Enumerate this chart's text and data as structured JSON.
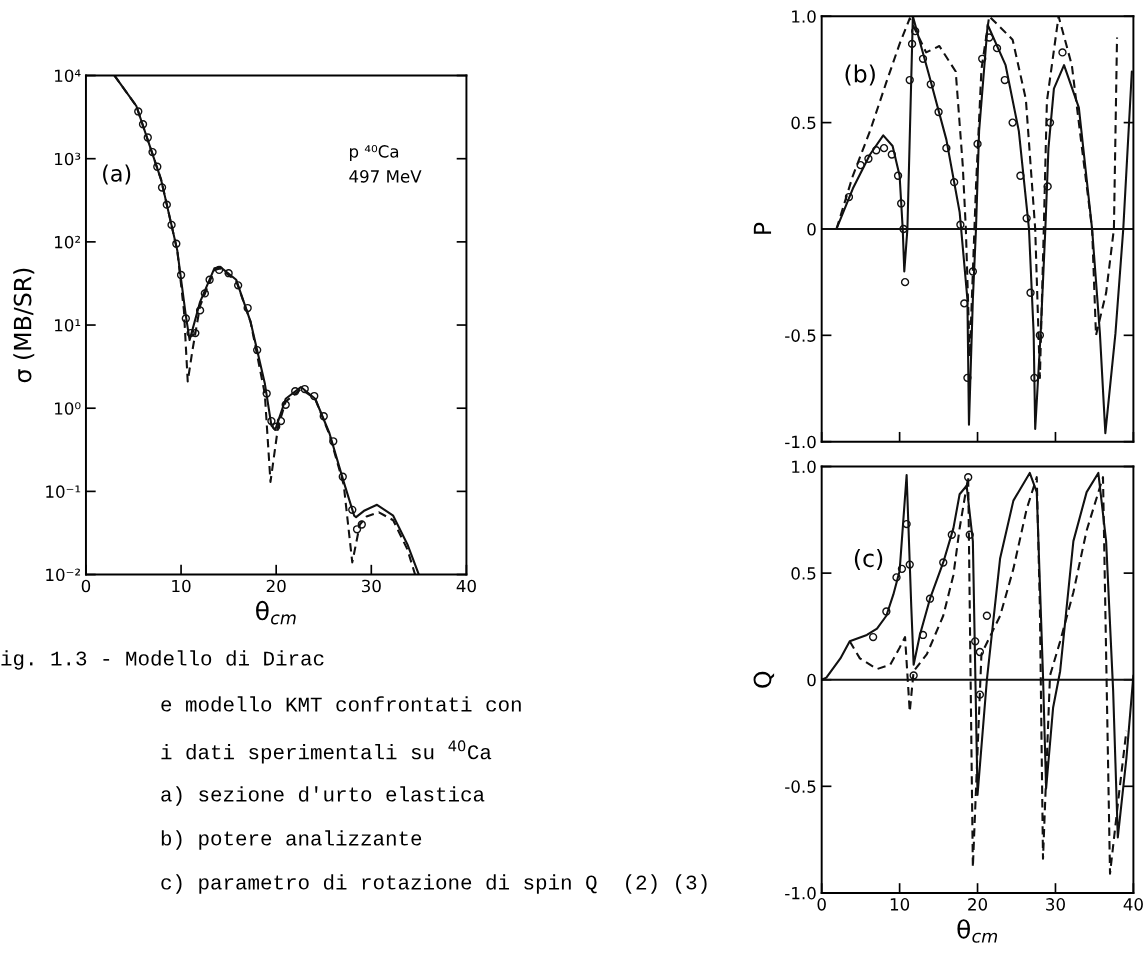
{
  "chart_data": [
    {
      "type": "line",
      "xlabel": "θ$_{cm}$",
      "ylabel": "σ (MB/SR)",
      "log": true,
      "xlim": [
        0,
        40
      ],
      "xticks": [
        0,
        10,
        20,
        30,
        40
      ],
      "ylim": [
        0.01,
        10000
      ],
      "yticks": [
        {
          "value": 0.01,
          "label": "10⁻²"
        },
        {
          "value": 0.1,
          "label": "10⁻¹"
        },
        {
          "value": 1,
          "label": "10⁰"
        },
        {
          "value": 10,
          "label": "10¹"
        },
        {
          "value": 100,
          "label": "10²"
        },
        {
          "value": 1000,
          "label": "10³"
        },
        {
          "value": 10000,
          "label": "10⁴"
        }
      ],
      "annotations": [
        "(a)",
        "p ⁴⁰Ca",
        "497 MeV",
        "ig. 1.3 - Modello di Dirac",
        "e modello KMT confrontati con",
        "i dati sperimentali su $^{40}$Ca",
        "a) sezione d'urto elastica",
        "b) potere analizzante",
        "c) parametro di rotazione di spin Q  (2) (3)"
      ],
      "series": [
        {
          "type": "line",
          "line_style": "solid",
          "color": "#111111",
          "x": [
            3,
            5.3,
            7.9,
            9.6,
            10.5,
            10.9,
            12,
            13.5,
            14.1,
            15.8,
            17.3,
            18.8,
            19.5,
            19.9,
            21,
            22.6,
            24.1,
            25.6,
            27.1,
            28.2,
            28.4,
            29.3,
            30.6,
            32.3,
            33.8,
            35
          ],
          "values": [
            10000,
            4300,
            560,
            79,
            13,
            6.6,
            19,
            48,
            50,
            35,
            11,
            2.0,
            0.62,
            0.55,
            1.3,
            1.8,
            1.3,
            0.5,
            0.13,
            0.051,
            0.049,
            0.059,
            0.069,
            0.051,
            0.023,
            0.01
          ]
        },
        {
          "type": "line",
          "line_style": "dashed",
          "color": "#111111",
          "x": [
            3,
            5.3,
            7.9,
            9.6,
            10.3,
            10.7,
            11.2,
            12,
            13.5,
            14.1,
            15.8,
            17.3,
            18.8,
            19.4,
            20.2,
            21,
            22.6,
            24.1,
            25.6,
            27.1,
            28,
            28.8,
            29.5,
            30.8,
            32.3,
            33.8,
            34.6
          ],
          "values": [
            10000,
            4300,
            560,
            79,
            15,
            2.1,
            5,
            17,
            46,
            48,
            34,
            11,
            1.5,
            0.13,
            0.6,
            1.2,
            1.7,
            1.3,
            0.48,
            0.12,
            0.014,
            0.04,
            0.05,
            0.056,
            0.045,
            0.02,
            0.01
          ]
        },
        {
          "type": "scatter",
          "marker": "circle",
          "color": "#111111",
          "x": [
            5.5,
            6,
            6.5,
            7,
            7.5,
            8,
            8.5,
            9,
            9.5,
            10,
            10.5,
            11,
            11.5,
            12,
            12.5,
            13,
            14,
            15,
            16,
            17,
            18,
            19,
            19.5,
            20,
            20.5,
            21,
            22,
            23,
            24,
            25,
            26,
            27,
            28,
            28.5,
            29
          ],
          "values": [
            3700,
            2600,
            1800,
            1200,
            800,
            450,
            280,
            160,
            95,
            40,
            12,
            8,
            8,
            15,
            24,
            35,
            46,
            42,
            30,
            16,
            5,
            1.5,
            0.7,
            0.6,
            0.7,
            1.1,
            1.6,
            1.7,
            1.4,
            0.8,
            0.4,
            0.15,
            0.06,
            0.035,
            0.04
          ]
        }
      ]
    },
    {
      "type": "line",
      "ylabel": "P",
      "tick_labels": "y",
      "xlim": [
        0,
        40
      ],
      "xticks": [
        0,
        10,
        20,
        30,
        40
      ],
      "ylim": [
        -1.0,
        1.0
      ],
      "yticks": [
        {
          "value": -1.0,
          "label": "-1.0"
        },
        {
          "value": -0.5,
          "label": "-0.5"
        },
        {
          "value": 0,
          "label": "0"
        },
        {
          "value": 0.5,
          "label": "0.5"
        },
        {
          "value": 1.0,
          "label": "1.0"
        }
      ],
      "ref_lines": [
        {
          "axis": "y",
          "value": 0,
          "color": "#111111"
        }
      ],
      "annotations": [
        "(b)"
      ],
      "series": [
        {
          "type": "line",
          "line_style": "solid",
          "color": "#111111",
          "x": [
            0,
            1.9,
            4.0,
            6.2,
            7.9,
            9.1,
            10,
            10.4,
            10.6,
            11.0,
            11.7,
            13.8,
            16,
            17.7,
            18.7,
            18.9,
            19.4,
            19.8,
            20.2,
            21.3,
            23.6,
            25.3,
            26.6,
            27.2,
            27.4,
            28.1,
            28.7,
            29.1,
            29.8,
            31.1,
            33,
            34.7,
            35.7,
            36.4,
            37.7,
            38.7,
            39.8
          ],
          "values": [
            0,
            0,
            0.19,
            0.35,
            0.44,
            0.39,
            0.25,
            0,
            -0.2,
            0,
            1.0,
            0.72,
            0.42,
            0.08,
            -0.33,
            -0.92,
            -0.33,
            0,
            0.46,
            0.96,
            0.77,
            0.46,
            0,
            -0.49,
            -0.94,
            -0.49,
            0,
            0.38,
            0.66,
            0.77,
            0.57,
            0,
            -0.49,
            -0.96,
            -0.49,
            0,
            0.74
          ]
        },
        {
          "type": "line",
          "line_style": "dashed",
          "color": "#111111",
          "x": [
            1.9,
            4.0,
            6.2,
            8.3,
            10,
            11.3,
            13.4,
            15.1,
            17.2,
            18.1,
            18.5,
            19.0,
            19.8,
            20.5,
            21.5,
            24.5,
            26.2,
            27.4,
            28.0,
            28.5,
            28.9,
            30.4,
            32.1,
            33.4,
            34.7,
            35.2,
            36.5,
            37.5,
            37.9
          ],
          "values": [
            0,
            0.25,
            0.46,
            0.69,
            0.87,
            0.99,
            0.83,
            0.86,
            0.74,
            0.3,
            0,
            -0.6,
            0.2,
            0.75,
            1.0,
            0.89,
            0.61,
            0,
            -0.7,
            0,
            0.6,
            1.0,
            0.77,
            0.38,
            0,
            -0.5,
            -0.3,
            0,
            0.9
          ]
        },
        {
          "type": "scatter",
          "marker": "circle",
          "color": "#111111",
          "x": [
            3.5,
            5,
            6,
            7,
            8,
            9,
            9.8,
            10.2,
            10.5,
            10.7,
            11.3,
            11.6,
            12,
            13,
            14,
            15,
            16,
            17,
            17.8,
            18.3,
            18.7,
            19.4,
            20,
            20.6,
            21.5,
            22.5,
            23.5,
            24.5,
            25.5,
            26.3,
            26.8,
            27.3,
            28,
            29,
            29.3,
            30.9
          ],
          "values": [
            0.15,
            0.3,
            0.33,
            0.37,
            0.38,
            0.35,
            0.25,
            0.12,
            0,
            -0.25,
            0.7,
            0.87,
            0.93,
            0.8,
            0.68,
            0.55,
            0.38,
            0.22,
            0.02,
            -0.35,
            -0.7,
            -0.2,
            0.4,
            0.8,
            0.9,
            0.85,
            0.7,
            0.5,
            0.25,
            0.05,
            -0.3,
            -0.7,
            -0.5,
            0.2,
            0.5,
            0.83
          ]
        }
      ]
    },
    {
      "type": "line",
      "ylabel": "Q",
      "xlabel": "θ$_{cm}$",
      "xlim": [
        0,
        40
      ],
      "xticks": [
        0,
        10,
        20,
        30,
        40
      ],
      "ylim": [
        -1.0,
        1.0
      ],
      "yticks": [
        {
          "value": -1.0,
          "label": "-1.0"
        },
        {
          "value": -0.5,
          "label": "-0.5"
        },
        {
          "value": 0,
          "label": "0"
        },
        {
          "value": 0.5,
          "label": "0.5"
        },
        {
          "value": 1.0,
          "label": "1.0"
        }
      ],
      "ref_lines": [
        {
          "axis": "y",
          "value": 0,
          "color": "#111111"
        }
      ],
      "annotations": [
        "(c)"
      ],
      "series": [
        {
          "type": "line",
          "line_style": "solid",
          "color": "#111111",
          "x": [
            0,
            0.6,
            2.4,
            3.6,
            5.8,
            7.1,
            8.3,
            9.2,
            10,
            10.9,
            11.5,
            11.8,
            12.6,
            13.9,
            15.6,
            16.9,
            17.7,
            18.6,
            19.4,
            20,
            21.2,
            22.9,
            24.6,
            26.7,
            27.6,
            28.4,
            28.8,
            29.7,
            30.6,
            32.3,
            34,
            35.5,
            36.5,
            37.4,
            38,
            39.1,
            40
          ],
          "values": [
            0,
            0.01,
            0.1,
            0.18,
            0.21,
            0.24,
            0.3,
            0.4,
            0.51,
            0.96,
            0.34,
            0.07,
            0.21,
            0.38,
            0.55,
            0.71,
            0.87,
            0.91,
            0.65,
            -0.54,
            0,
            0.57,
            0.84,
            0.97,
            0.88,
            0.02,
            -0.51,
            -0.13,
            0.04,
            0.65,
            0.88,
            0.97,
            0.65,
            -0.05,
            -0.74,
            -0.37,
            0.02
          ]
        },
        {
          "type": "line",
          "line_style": "dashed",
          "color": "#111111",
          "x": [
            3.6,
            4.9,
            7.1,
            8.8,
            10,
            10.7,
            11.3,
            11.8,
            13.5,
            15.6,
            16.9,
            17.7,
            18.8,
            19.4,
            20.5,
            22.9,
            24.6,
            26.3,
            27.6,
            28,
            28.4,
            29.3,
            30.6,
            32.3,
            34,
            36.1,
            37,
            38.2,
            39.1
          ],
          "values": [
            0.18,
            0.1,
            0.05,
            0.07,
            0.15,
            0.2,
            -0.15,
            0.04,
            0.12,
            0.3,
            0.49,
            0.71,
            0.95,
            -0.88,
            0.12,
            0.3,
            0.52,
            0.8,
            0.95,
            0.34,
            -0.84,
            0.02,
            0.18,
            0.41,
            0.7,
            0.95,
            -0.91,
            -0.52,
            -0.24
          ]
        },
        {
          "type": "scatter",
          "marker": "circle",
          "color": "#111111",
          "x": [
            6.6,
            8.3,
            9.6,
            10.3,
            10.9,
            11.3,
            11.8,
            13,
            13.9,
            15.6,
            16.7,
            18.8,
            19,
            19.7,
            20.3,
            20.3,
            21.2
          ],
          "values": [
            0.2,
            0.32,
            0.48,
            0.52,
            0.73,
            0.54,
            0.02,
            0.21,
            0.38,
            0.55,
            0.68,
            0.95,
            0.68,
            0.18,
            0.13,
            -0.07,
            0.3
          ]
        }
      ]
    }
  ]
}
